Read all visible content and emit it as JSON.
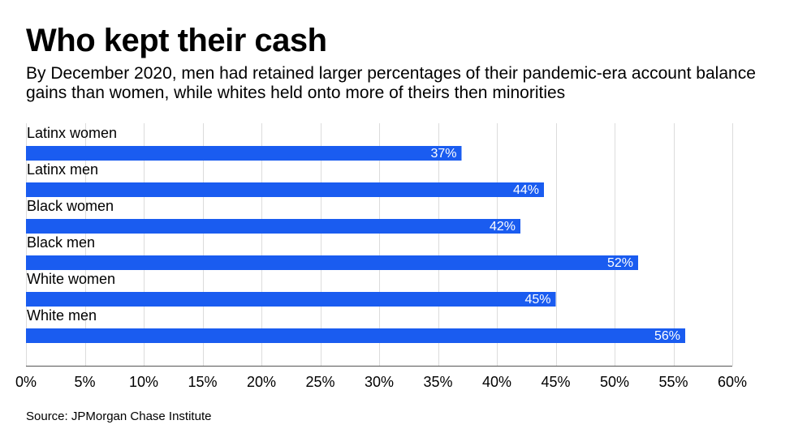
{
  "header": {
    "title": "Who kept their cash",
    "subtitle": "By December 2020, men had retained larger percentages of their pandemic-era account balance gains than women, while whites held onto more of theirs then minorities"
  },
  "footer": {
    "source": "Source: JPMorgan Chase Institute"
  },
  "chart_data": {
    "type": "bar",
    "orientation": "horizontal",
    "title": "Who kept their cash",
    "categories": [
      "Latinx women",
      "Latinx men",
      "Black women",
      "Black men",
      "White women",
      "White men"
    ],
    "values": [
      37,
      44,
      42,
      52,
      45,
      56
    ],
    "data_labels": [
      "37%",
      "44%",
      "42%",
      "52%",
      "45%",
      "56%"
    ],
    "xlim": [
      0,
      60
    ],
    "x_ticks": [
      0,
      5,
      10,
      15,
      20,
      25,
      30,
      35,
      40,
      45,
      50,
      55,
      60
    ],
    "x_tick_labels": [
      "0%",
      "5%",
      "10%",
      "15%",
      "20%",
      "25%",
      "30%",
      "35%",
      "40%",
      "45%",
      "50%",
      "55%",
      "60%"
    ],
    "xlabel": "",
    "ylabel": "",
    "grid": true,
    "bar_color": "#1a5cf0"
  }
}
